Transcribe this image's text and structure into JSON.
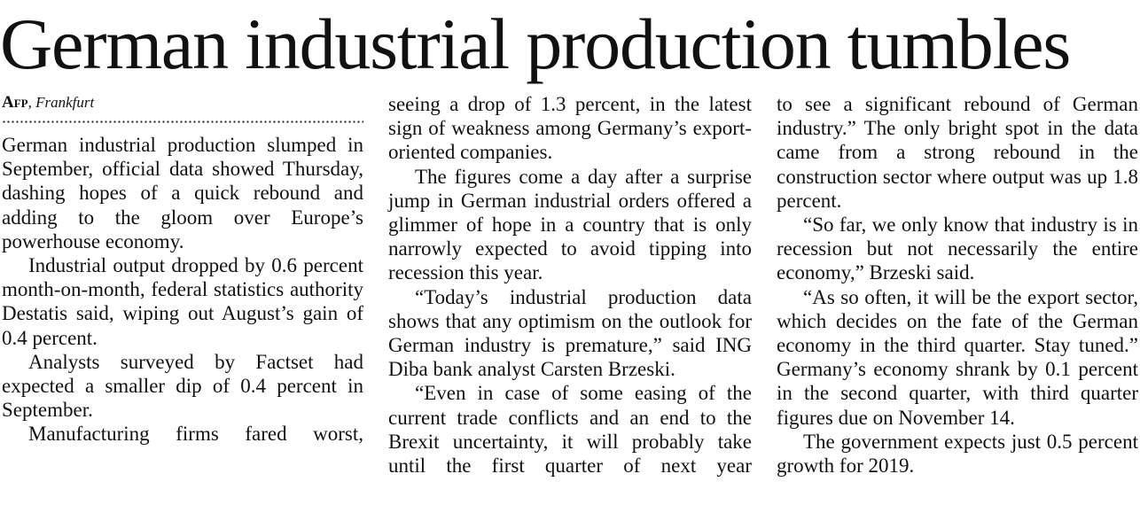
{
  "article": {
    "headline": "German industrial production tumbles",
    "byline": {
      "agency": "Afp",
      "city": "Frankfurt"
    },
    "col1": [
      "German industrial production slumped in September, official data showed Thursday, dashing hopes of a quick rebound and adding to the gloom over Europe’s powerhouse economy.",
      "Industrial output dropped by 0.6 percent month-on-month, federal statistics authority Destatis said, wiping out August’s gain of 0.4 percent.",
      "Analysts surveyed by Factset had expected a smaller dip of 0.4 percent in September.",
      "Manufacturing firms fared worst,"
    ],
    "col2": [
      "seeing a drop of 1.3 percent, in the latest sign of weakness among Germany’s export-oriented companies.",
      "The figures come a day after a surprise jump in German industrial orders offered a glimmer of hope in a country that is only narrowly expected to avoid tipping into recession this year.",
      "“Today’s industrial production data shows that any optimism on the outlook for German industry is premature,” said ING Diba bank analyst Carsten Brzeski.",
      "“Even in case of some easing of the current trade conflicts and an end to the Brexit uncertainty, it will probably take until the first quarter of next year"
    ],
    "col3": [
      "to see a significant rebound of German industry.” The only bright spot in the data came from a strong rebound in the construction sector where output was up 1.8 percent.",
      "“So far, we only know that industry is in recession but not necessarily the entire economy,” Brzeski said.",
      "“As so often, it will be the export sector, which decides on the fate of the German economy in the third quarter. Stay tuned.” Germany’s economy shrank by 0.1 percent in the second quarter, with third quarter figures due on November 14.",
      "The government expects just 0.5 percent growth for 2019."
    ]
  }
}
